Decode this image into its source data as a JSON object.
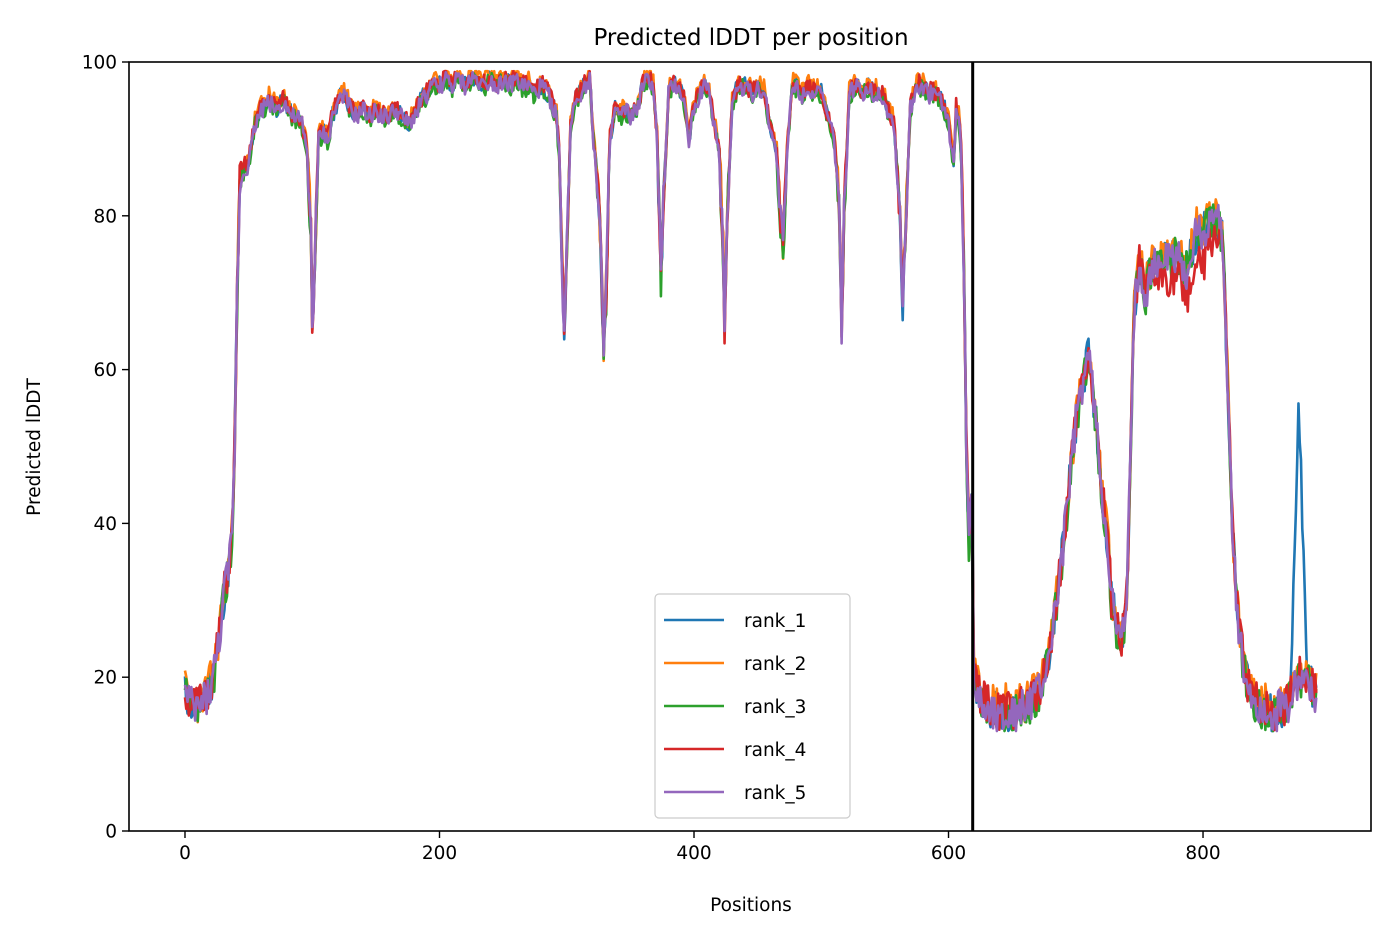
{
  "chart_data": {
    "type": "line",
    "title": "Predicted lDDT per position",
    "xlabel": "Positions",
    "ylabel": "Predicted lDDT",
    "xlim": [
      -44,
      932
    ],
    "ylim": [
      0,
      100
    ],
    "xticks": [
      0,
      200,
      400,
      600,
      800
    ],
    "yticks": [
      0,
      20,
      40,
      60,
      80,
      100
    ],
    "grid": false,
    "legend_position": "lower center",
    "chain_break": 619,
    "base_profile": [
      [
        0,
        18
      ],
      [
        3,
        17
      ],
      [
        6,
        16
      ],
      [
        10,
        16
      ],
      [
        14,
        17
      ],
      [
        18,
        18
      ],
      [
        22,
        20
      ],
      [
        26,
        24
      ],
      [
        30,
        30
      ],
      [
        34,
        34
      ],
      [
        37,
        38
      ],
      [
        39,
        50
      ],
      [
        41,
        70
      ],
      [
        43,
        84
      ],
      [
        46,
        86
      ],
      [
        50,
        87
      ],
      [
        55,
        92
      ],
      [
        60,
        94
      ],
      [
        66,
        95
      ],
      [
        72,
        94
      ],
      [
        78,
        95
      ],
      [
        84,
        93
      ],
      [
        88,
        93
      ],
      [
        92,
        92
      ],
      [
        96,
        88
      ],
      [
        99,
        78
      ],
      [
        100,
        66
      ],
      [
        102,
        74
      ],
      [
        105,
        90
      ],
      [
        108,
        91
      ],
      [
        112,
        90
      ],
      [
        116,
        93
      ],
      [
        120,
        95
      ],
      [
        124,
        96
      ],
      [
        130,
        94
      ],
      [
        135,
        93
      ],
      [
        140,
        94
      ],
      [
        145,
        93
      ],
      [
        150,
        94
      ],
      [
        155,
        93
      ],
      [
        160,
        93
      ],
      [
        165,
        94
      ],
      [
        170,
        93
      ],
      [
        175,
        92
      ],
      [
        180,
        93
      ],
      [
        185,
        95
      ],
      [
        190,
        96
      ],
      [
        195,
        97
      ],
      [
        200,
        97
      ],
      [
        205,
        98
      ],
      [
        210,
        97
      ],
      [
        215,
        98
      ],
      [
        220,
        97
      ],
      [
        225,
        98
      ],
      [
        230,
        98
      ],
      [
        235,
        97
      ],
      [
        240,
        98
      ],
      [
        245,
        97
      ],
      [
        250,
        98
      ],
      [
        255,
        97
      ],
      [
        260,
        98
      ],
      [
        265,
        97
      ],
      [
        270,
        97
      ],
      [
        275,
        96
      ],
      [
        280,
        97
      ],
      [
        285,
        96
      ],
      [
        288,
        95
      ],
      [
        292,
        93
      ],
      [
        294,
        88
      ],
      [
        296,
        75
      ],
      [
        298,
        65
      ],
      [
        300,
        75
      ],
      [
        303,
        92
      ],
      [
        306,
        95
      ],
      [
        310,
        96
      ],
      [
        314,
        97
      ],
      [
        318,
        98
      ],
      [
        321,
        90
      ],
      [
        324,
        85
      ],
      [
        327,
        75
      ],
      [
        329,
        62
      ],
      [
        331,
        70
      ],
      [
        334,
        90
      ],
      [
        338,
        94
      ],
      [
        342,
        93
      ],
      [
        346,
        94
      ],
      [
        350,
        93
      ],
      [
        355,
        94
      ],
      [
        360,
        97
      ],
      [
        364,
        98
      ],
      [
        368,
        97
      ],
      [
        371,
        90
      ],
      [
        374,
        72
      ],
      [
        376,
        82
      ],
      [
        380,
        96
      ],
      [
        384,
        97
      ],
      [
        388,
        97
      ],
      [
        392,
        95
      ],
      [
        396,
        90
      ],
      [
        400,
        94
      ],
      [
        404,
        96
      ],
      [
        408,
        97
      ],
      [
        412,
        96
      ],
      [
        416,
        92
      ],
      [
        420,
        88
      ],
      [
        423,
        75
      ],
      [
        424,
        65
      ],
      [
        426,
        80
      ],
      [
        430,
        95
      ],
      [
        435,
        97
      ],
      [
        440,
        97
      ],
      [
        445,
        96
      ],
      [
        450,
        97
      ],
      [
        455,
        96
      ],
      [
        460,
        92
      ],
      [
        465,
        88
      ],
      [
        468,
        80
      ],
      [
        470,
        76
      ],
      [
        473,
        88
      ],
      [
        477,
        97
      ],
      [
        481,
        97
      ],
      [
        485,
        96
      ],
      [
        490,
        97
      ],
      [
        495,
        96
      ],
      [
        500,
        96
      ],
      [
        505,
        93
      ],
      [
        510,
        90
      ],
      [
        514,
        82
      ],
      [
        516,
        66
      ],
      [
        518,
        80
      ],
      [
        522,
        96
      ],
      [
        527,
        97
      ],
      [
        532,
        96
      ],
      [
        537,
        97
      ],
      [
        542,
        96
      ],
      [
        547,
        96
      ],
      [
        552,
        94
      ],
      [
        557,
        92
      ],
      [
        560,
        85
      ],
      [
        562,
        80
      ],
      [
        564,
        68
      ],
      [
        566,
        78
      ],
      [
        570,
        94
      ],
      [
        575,
        97
      ],
      [
        580,
        97
      ],
      [
        585,
        96
      ],
      [
        590,
        96
      ],
      [
        595,
        95
      ],
      [
        600,
        92
      ],
      [
        604,
        87
      ],
      [
        606,
        94
      ],
      [
        608,
        93
      ],
      [
        610,
        88
      ],
      [
        612,
        75
      ],
      [
        614,
        50
      ],
      [
        616,
        38
      ],
      [
        618,
        42
      ],
      [
        619,
        34
      ],
      [
        620,
        20
      ],
      [
        624,
        18
      ],
      [
        628,
        17
      ],
      [
        632,
        16
      ],
      [
        636,
        16
      ],
      [
        640,
        15
      ],
      [
        645,
        16
      ],
      [
        650,
        15
      ],
      [
        655,
        16
      ],
      [
        660,
        16
      ],
      [
        665,
        17
      ],
      [
        670,
        18
      ],
      [
        675,
        20
      ],
      [
        680,
        24
      ],
      [
        685,
        30
      ],
      [
        690,
        37
      ],
      [
        695,
        45
      ],
      [
        700,
        53
      ],
      [
        705,
        58
      ],
      [
        710,
        62
      ],
      [
        715,
        55
      ],
      [
        720,
        45
      ],
      [
        725,
        38
      ],
      [
        728,
        30
      ],
      [
        733,
        26
      ],
      [
        736,
        24
      ],
      [
        740,
        30
      ],
      [
        743,
        48
      ],
      [
        746,
        68
      ],
      [
        750,
        74
      ],
      [
        755,
        70
      ],
      [
        760,
        74
      ],
      [
        765,
        73
      ],
      [
        770,
        75
      ],
      [
        775,
        74
      ],
      [
        780,
        76
      ],
      [
        785,
        72
      ],
      [
        790,
        75
      ],
      [
        795,
        78
      ],
      [
        800,
        78
      ],
      [
        805,
        80
      ],
      [
        810,
        80
      ],
      [
        815,
        78
      ],
      [
        817,
        70
      ],
      [
        820,
        55
      ],
      [
        823,
        40
      ],
      [
        826,
        30
      ],
      [
        830,
        24
      ],
      [
        835,
        19
      ],
      [
        840,
        17
      ],
      [
        845,
        16
      ],
      [
        850,
        16
      ],
      [
        855,
        15
      ],
      [
        860,
        16
      ],
      [
        865,
        16
      ],
      [
        870,
        18
      ],
      [
        875,
        20
      ],
      [
        880,
        20
      ],
      [
        885,
        19
      ],
      [
        889,
        18
      ]
    ],
    "series": [
      {
        "name": "rank_1",
        "color": "#1f77b4",
        "bumps": [
          [
            869,
            868,
            875,
            36,
            882,
            0
          ]
        ],
        "offset": 0,
        "seed": 11
      },
      {
        "name": "rank_2",
        "color": "#ff7f0e",
        "bumps": [],
        "offset": 0.6,
        "seed": 23
      },
      {
        "name": "rank_3",
        "color": "#2ca02c",
        "bumps": [],
        "offset": -0.4,
        "seed": 37
      },
      {
        "name": "rank_4",
        "color": "#d62728",
        "bumps": [
          [
            745,
            745,
            800,
            -5,
            820,
            0
          ]
        ],
        "offset": 0.2,
        "seed": 51
      },
      {
        "name": "rank_5",
        "color": "#9467bd",
        "bumps": [],
        "offset": -0.2,
        "seed": 73
      }
    ]
  }
}
